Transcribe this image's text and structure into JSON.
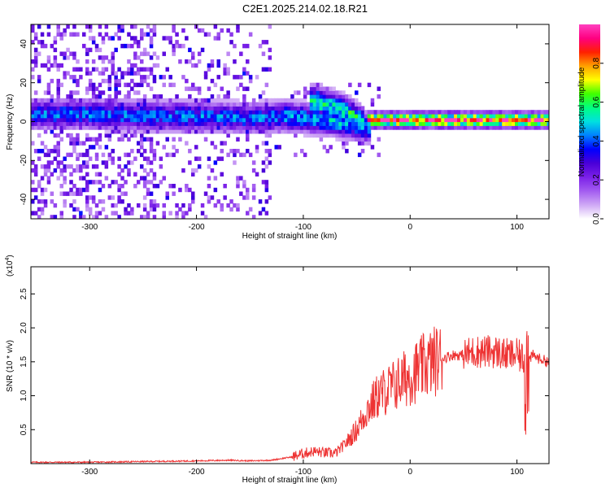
{
  "title": "C2E1.2025.214.02.18.R21",
  "colors": {
    "snr_line": "#ee3333",
    "frame": "#000000",
    "colormap": [
      "#ffffff",
      "#cfa8f5",
      "#a35cf0",
      "#7b20e8",
      "#4a00d8",
      "#0000ff",
      "#0080ff",
      "#00e0e0",
      "#00ff80",
      "#40ff00",
      "#ffff00",
      "#ffa000",
      "#ff2000",
      "#ff0080",
      "#ff40c0"
    ]
  },
  "chart_data": [
    {
      "type": "heatmap",
      "name": "spectrogram",
      "xlabel": "Height of straight line (km)",
      "ylabel": "Frequency (Hz)",
      "xlim": [
        -355,
        130
      ],
      "ylim": [
        -50,
        50
      ],
      "xticks": [
        -300,
        -200,
        -100,
        0,
        100
      ],
      "yticks": [
        -40,
        -20,
        0,
        20,
        40
      ],
      "xtick_labels": [
        "-300",
        "-200",
        "-100",
        "0",
        "100"
      ],
      "ytick_labels": [
        "-40",
        "-20",
        "0",
        "20",
        "40"
      ],
      "colorbar": {
        "label": "Normalized spectral amplitude",
        "range": [
          0.0,
          1.0
        ],
        "ticks": [
          0.0,
          0.2,
          0.4,
          0.6,
          0.8
        ],
        "tick_labels": [
          "0.0",
          "0.2",
          "0.4",
          "0.6",
          "0.8"
        ]
      },
      "ridges": [
        {
          "x": [
            -355,
            -300,
            -250,
            -200,
            -150,
            -120
          ],
          "freq": [
            4,
            4,
            3,
            3,
            2,
            3
          ],
          "amplitude": 0.4
        },
        {
          "x": [
            -120,
            -100,
            -80,
            -60,
            -50,
            -40
          ],
          "freq": [
            3,
            2,
            1,
            -1,
            -2,
            -3
          ],
          "amplitude": 0.45
        },
        {
          "x": [
            -95,
            -85,
            -75,
            -65,
            -55,
            -45
          ],
          "freq": [
            11,
            10,
            8,
            6,
            3,
            -1
          ],
          "amplitude": 0.55
        },
        {
          "x": [
            -40,
            -20,
            0,
            20,
            40,
            60,
            80,
            100,
            130
          ],
          "freq": [
            1,
            1,
            1,
            1,
            1,
            1,
            1,
            1,
            1
          ],
          "amplitude": 0.9
        }
      ]
    },
    {
      "type": "line",
      "name": "snr",
      "xlabel": "Height of straight line (km)",
      "ylabel": "SNR (10 * v/v)",
      "yscale_label": "(x10",
      "yscale_exponent": "4",
      "xlim": [
        -355,
        130
      ],
      "ylim": [
        0.0,
        2.9
      ],
      "xticks": [
        -300,
        -200,
        -100,
        0,
        100
      ],
      "yticks": [
        0.5,
        1.0,
        1.5,
        2.0,
        2.5
      ],
      "xtick_labels": [
        "-300",
        "-200",
        "-100",
        "0",
        "100"
      ],
      "ytick_labels": [
        "0.5",
        "1.0",
        "1.5",
        "2.0",
        "2.5"
      ],
      "series": [
        {
          "x": [
            -355,
            -300,
            -250,
            -200,
            -170,
            -150,
            -130,
            -110,
            -100,
            -90,
            -80,
            -70,
            -60,
            -50,
            -40,
            -30,
            -20,
            -10,
            0,
            10,
            20,
            30,
            40,
            50,
            60,
            70,
            80,
            90,
            100,
            105,
            110,
            115,
            120,
            130
          ],
          "y": [
            0.02,
            0.02,
            0.03,
            0.04,
            0.05,
            0.04,
            0.05,
            0.1,
            0.15,
            0.18,
            0.16,
            0.15,
            0.3,
            0.5,
            0.8,
            1.0,
            1.1,
            1.2,
            1.3,
            1.4,
            1.5,
            1.55,
            1.6,
            1.6,
            1.65,
            1.65,
            1.65,
            1.6,
            1.6,
            1.55,
            1.5,
            1.6,
            1.55,
            1.5
          ]
        }
      ]
    }
  ]
}
